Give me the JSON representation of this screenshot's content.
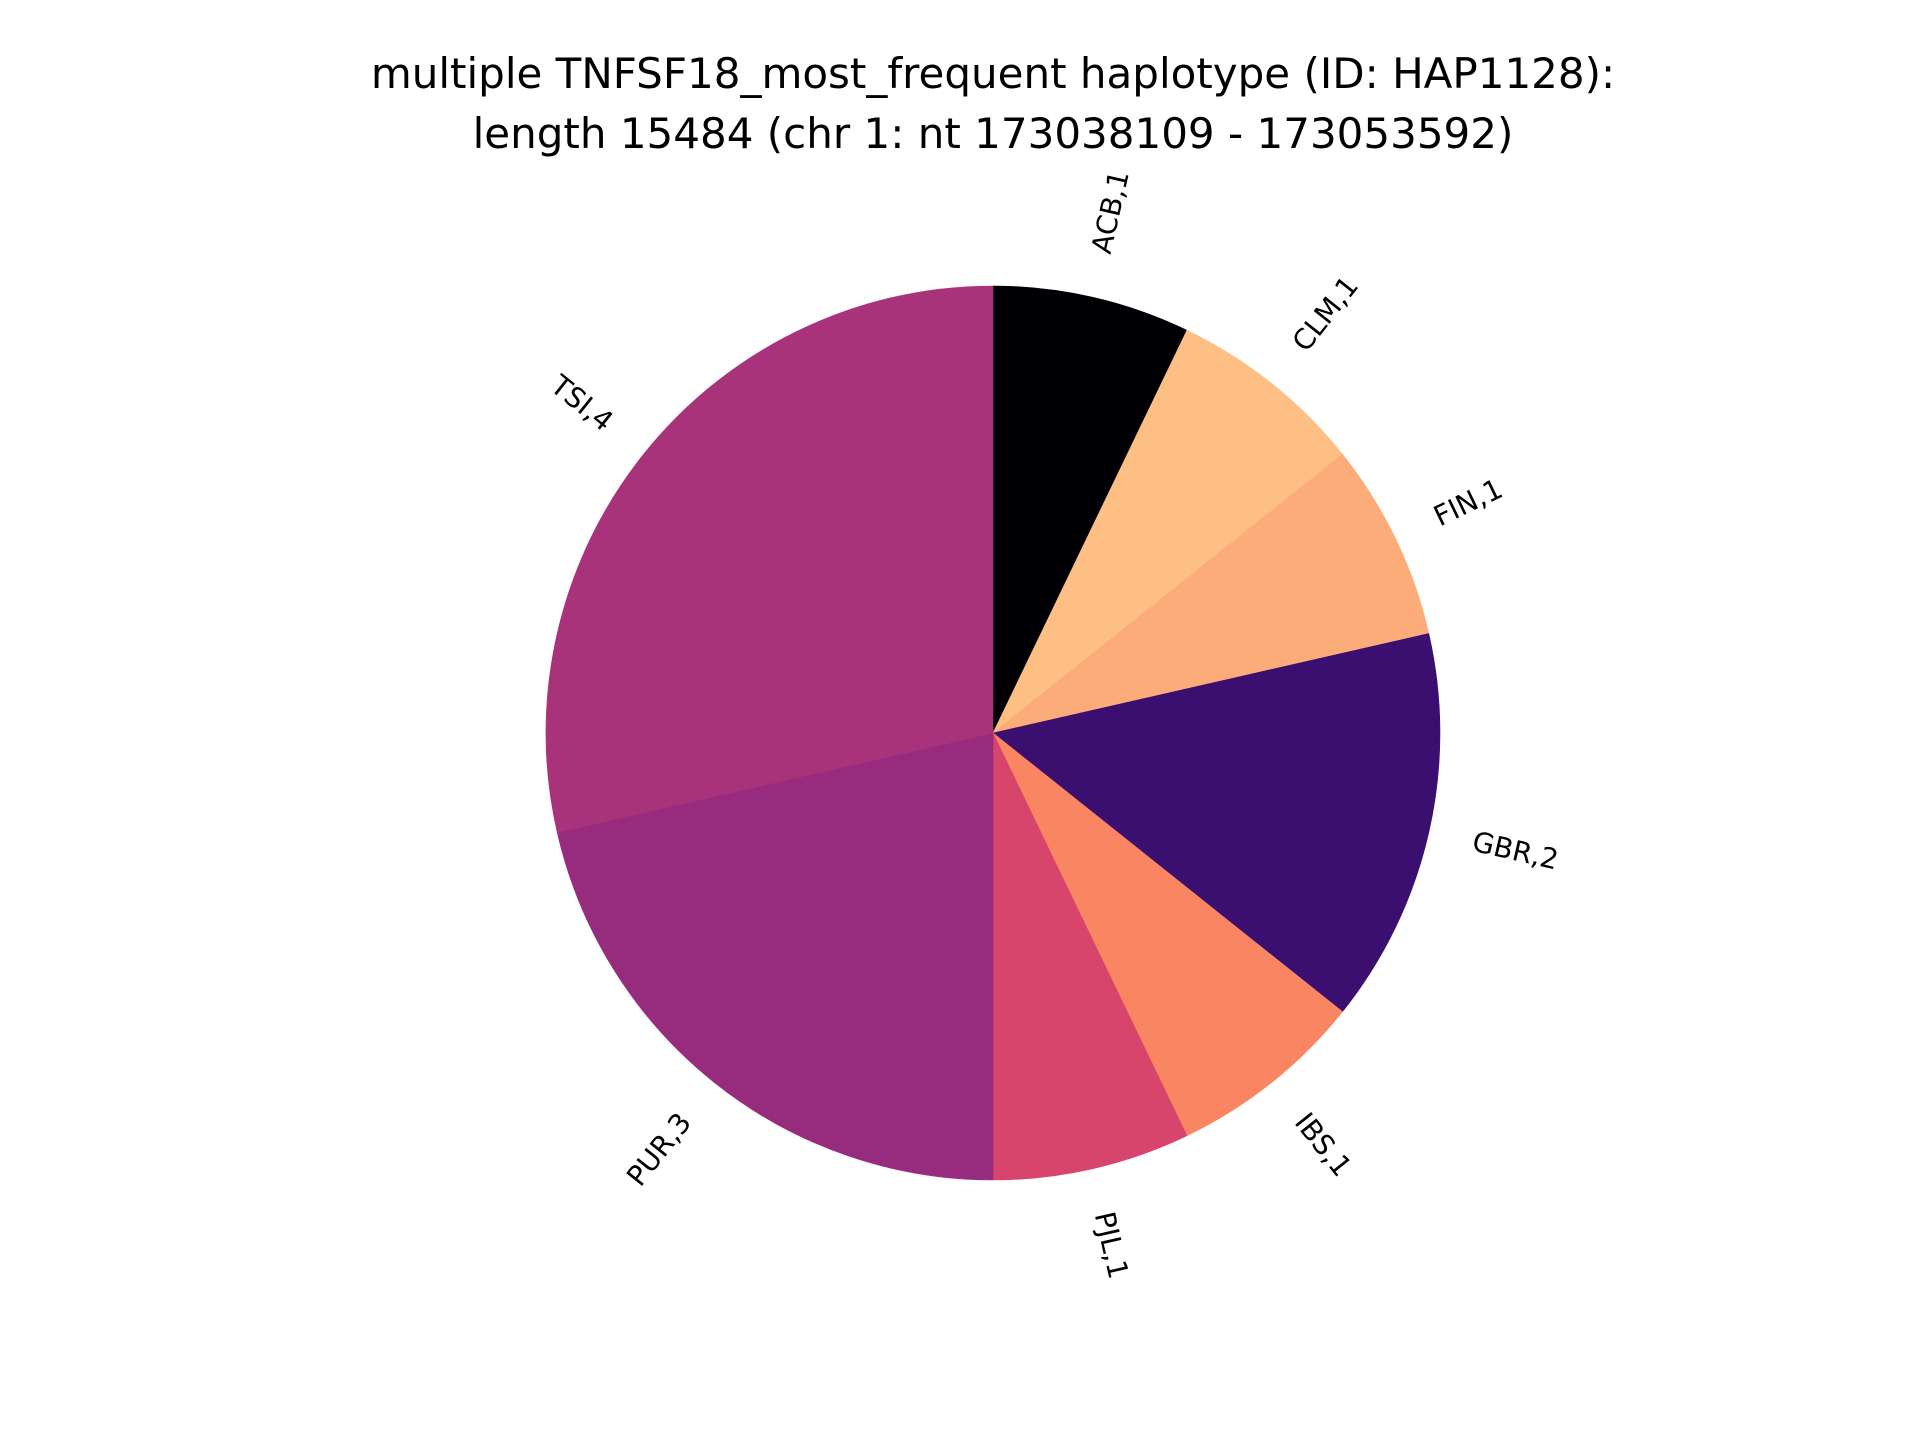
{
  "chart_data": {
    "type": "pie",
    "title_lines": [
      "multiple TNFSF18_most_frequent haplotype (ID: HAP1128):",
      "length 15484 (chr 1: nt 173038109 - 173053592)"
    ],
    "slices": [
      {
        "label": "ACB,1",
        "category": "ACB",
        "value": 1,
        "color": "#000004"
      },
      {
        "label": "CLM,1",
        "category": "CLM",
        "value": 1,
        "color": "#FEBF84"
      },
      {
        "label": "FIN,1",
        "category": "FIN",
        "value": 1,
        "color": "#FCAC79"
      },
      {
        "label": "GBR,2",
        "category": "GBR",
        "value": 2,
        "color": "#3B0F6F"
      },
      {
        "label": "IBS,1",
        "category": "IBS",
        "value": 1,
        "color": "#FA8563"
      },
      {
        "label": "PJL,1",
        "category": "PJL",
        "value": 1,
        "color": "#D8456C"
      },
      {
        "label": "PUR,3",
        "category": "PUR",
        "value": 3,
        "color": "#972C7E"
      },
      {
        "label": "TSI,4",
        "category": "TSI",
        "value": 4,
        "color": "#A8337B"
      }
    ],
    "start": "12 o'clock",
    "direction": "clockwise"
  }
}
